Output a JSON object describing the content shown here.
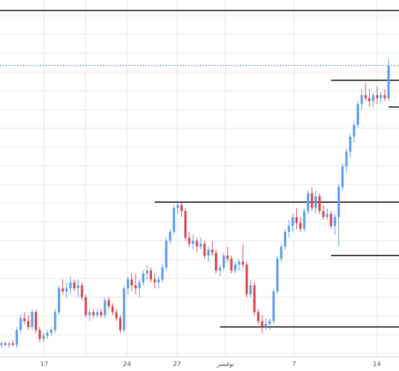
{
  "chart_data": {
    "type": "candlestick",
    "title": "",
    "xlabel": "",
    "ylabel": "",
    "grid": true,
    "x_ticks": [
      "17",
      "24",
      "27",
      "نوفمبر",
      "7",
      "14"
    ],
    "ylim": [
      0,
      100
    ],
    "colors": {
      "up": "#5b9cf0",
      "down": "#d9454f",
      "level": "#000000",
      "price_line": "#2f5fb5",
      "grid": "#e6e6ee"
    },
    "candles": [
      {
        "o": 2,
        "h": 3,
        "l": 1,
        "c": 2.5
      },
      {
        "o": 2.5,
        "h": 3,
        "l": 1.5,
        "c": 2
      },
      {
        "o": 2,
        "h": 3,
        "l": 1,
        "c": 2.5
      },
      {
        "o": 2.5,
        "h": 3.5,
        "l": 1.5,
        "c": 2
      },
      {
        "o": 2,
        "h": 8,
        "l": 1,
        "c": 7
      },
      {
        "o": 7,
        "h": 12,
        "l": 6,
        "c": 11
      },
      {
        "o": 11,
        "h": 13,
        "l": 9,
        "c": 10
      },
      {
        "o": 10,
        "h": 12,
        "l": 7,
        "c": 8
      },
      {
        "o": 8,
        "h": 14,
        "l": 7,
        "c": 13
      },
      {
        "o": 13,
        "h": 14,
        "l": 6,
        "c": 7
      },
      {
        "o": 7,
        "h": 8,
        "l": 3,
        "c": 4
      },
      {
        "o": 4,
        "h": 6,
        "l": 3,
        "c": 5
      },
      {
        "o": 5,
        "h": 7,
        "l": 4,
        "c": 6
      },
      {
        "o": 6,
        "h": 8,
        "l": 5,
        "c": 7
      },
      {
        "o": 7,
        "h": 14,
        "l": 6,
        "c": 13
      },
      {
        "o": 13,
        "h": 22,
        "l": 12,
        "c": 21
      },
      {
        "o": 21,
        "h": 24,
        "l": 19,
        "c": 20
      },
      {
        "o": 20,
        "h": 23,
        "l": 18,
        "c": 21
      },
      {
        "o": 21,
        "h": 25,
        "l": 19,
        "c": 23
      },
      {
        "o": 23,
        "h": 24,
        "l": 20,
        "c": 21
      },
      {
        "o": 21,
        "h": 24,
        "l": 18,
        "c": 22
      },
      {
        "o": 22,
        "h": 23,
        "l": 17,
        "c": 18
      },
      {
        "o": 18,
        "h": 19,
        "l": 11,
        "c": 12
      },
      {
        "o": 12,
        "h": 14,
        "l": 10,
        "c": 13
      },
      {
        "o": 13,
        "h": 14,
        "l": 11,
        "c": 12
      },
      {
        "o": 12,
        "h": 14,
        "l": 11,
        "c": 13
      },
      {
        "o": 13,
        "h": 14,
        "l": 11,
        "c": 12
      },
      {
        "o": 12,
        "h": 18,
        "l": 11,
        "c": 17
      },
      {
        "o": 17,
        "h": 18,
        "l": 14,
        "c": 15
      },
      {
        "o": 15,
        "h": 16,
        "l": 12,
        "c": 13
      },
      {
        "o": 13,
        "h": 14,
        "l": 10,
        "c": 11
      },
      {
        "o": 11,
        "h": 12,
        "l": 6,
        "c": 7
      },
      {
        "o": 7,
        "h": 22,
        "l": 6,
        "c": 21
      },
      {
        "o": 21,
        "h": 25,
        "l": 19,
        "c": 24
      },
      {
        "o": 24,
        "h": 26,
        "l": 20,
        "c": 22
      },
      {
        "o": 22,
        "h": 26,
        "l": 19,
        "c": 21
      },
      {
        "o": 21,
        "h": 24,
        "l": 18,
        "c": 23
      },
      {
        "o": 23,
        "h": 27,
        "l": 22,
        "c": 26
      },
      {
        "o": 26,
        "h": 29,
        "l": 24,
        "c": 27
      },
      {
        "o": 27,
        "h": 28,
        "l": 23,
        "c": 24
      },
      {
        "o": 24,
        "h": 26,
        "l": 21,
        "c": 23
      },
      {
        "o": 23,
        "h": 25,
        "l": 21,
        "c": 24
      },
      {
        "o": 24,
        "h": 29,
        "l": 23,
        "c": 28
      },
      {
        "o": 28,
        "h": 38,
        "l": 27,
        "c": 37
      },
      {
        "o": 37,
        "h": 41,
        "l": 36,
        "c": 40
      },
      {
        "o": 40,
        "h": 49,
        "l": 39,
        "c": 48
      },
      {
        "o": 48,
        "h": 50,
        "l": 46,
        "c": 49
      },
      {
        "o": 49,
        "h": 50,
        "l": 45,
        "c": 47
      },
      {
        "o": 47,
        "h": 48,
        "l": 37,
        "c": 38
      },
      {
        "o": 38,
        "h": 40,
        "l": 35,
        "c": 36
      },
      {
        "o": 36,
        "h": 39,
        "l": 34,
        "c": 37
      },
      {
        "o": 37,
        "h": 38,
        "l": 33,
        "c": 35
      },
      {
        "o": 35,
        "h": 38,
        "l": 34,
        "c": 36
      },
      {
        "o": 36,
        "h": 37,
        "l": 31,
        "c": 32
      },
      {
        "o": 32,
        "h": 35,
        "l": 30,
        "c": 34
      },
      {
        "o": 34,
        "h": 37,
        "l": 32,
        "c": 33
      },
      {
        "o": 33,
        "h": 34,
        "l": 26,
        "c": 27
      },
      {
        "o": 27,
        "h": 29,
        "l": 25,
        "c": 28
      },
      {
        "o": 28,
        "h": 33,
        "l": 27,
        "c": 32
      },
      {
        "o": 32,
        "h": 35,
        "l": 30,
        "c": 31
      },
      {
        "o": 31,
        "h": 32,
        "l": 26,
        "c": 27
      },
      {
        "o": 27,
        "h": 30,
        "l": 26,
        "c": 29
      },
      {
        "o": 29,
        "h": 31,
        "l": 27,
        "c": 30
      },
      {
        "o": 30,
        "h": 36,
        "l": 28,
        "c": 29
      },
      {
        "o": 29,
        "h": 30,
        "l": 18,
        "c": 19
      },
      {
        "o": 19,
        "h": 24,
        "l": 18,
        "c": 22
      },
      {
        "o": 22,
        "h": 23,
        "l": 12,
        "c": 13
      },
      {
        "o": 13,
        "h": 14,
        "l": 9,
        "c": 10
      },
      {
        "o": 10,
        "h": 12,
        "l": 6,
        "c": 8
      },
      {
        "o": 8,
        "h": 11,
        "l": 7,
        "c": 9
      },
      {
        "o": 9,
        "h": 11,
        "l": 7,
        "c": 10
      },
      {
        "o": 10,
        "h": 21,
        "l": 9,
        "c": 20
      },
      {
        "o": 20,
        "h": 32,
        "l": 19,
        "c": 31
      },
      {
        "o": 31,
        "h": 36,
        "l": 30,
        "c": 35
      },
      {
        "o": 35,
        "h": 41,
        "l": 34,
        "c": 40
      },
      {
        "o": 40,
        "h": 44,
        "l": 38,
        "c": 42
      },
      {
        "o": 42,
        "h": 46,
        "l": 40,
        "c": 45
      },
      {
        "o": 45,
        "h": 48,
        "l": 41,
        "c": 43
      },
      {
        "o": 43,
        "h": 45,
        "l": 40,
        "c": 41
      },
      {
        "o": 41,
        "h": 48,
        "l": 40,
        "c": 47
      },
      {
        "o": 47,
        "h": 54,
        "l": 46,
        "c": 53
      },
      {
        "o": 53,
        "h": 55,
        "l": 47,
        "c": 48
      },
      {
        "o": 48,
        "h": 54,
        "l": 46,
        "c": 52
      },
      {
        "o": 52,
        "h": 53,
        "l": 46,
        "c": 47
      },
      {
        "o": 47,
        "h": 49,
        "l": 44,
        "c": 45
      },
      {
        "o": 45,
        "h": 48,
        "l": 44,
        "c": 46
      },
      {
        "o": 46,
        "h": 47,
        "l": 41,
        "c": 42
      },
      {
        "o": 42,
        "h": 46,
        "l": 39,
        "c": 45
      },
      {
        "o": 45,
        "h": 56,
        "l": 35,
        "c": 55
      },
      {
        "o": 55,
        "h": 63,
        "l": 54,
        "c": 62
      },
      {
        "o": 62,
        "h": 68,
        "l": 60,
        "c": 67
      },
      {
        "o": 67,
        "h": 73,
        "l": 65,
        "c": 72
      },
      {
        "o": 72,
        "h": 77,
        "l": 70,
        "c": 76
      },
      {
        "o": 76,
        "h": 84,
        "l": 75,
        "c": 83
      },
      {
        "o": 83,
        "h": 88,
        "l": 81,
        "c": 86
      },
      {
        "o": 86,
        "h": 90,
        "l": 84,
        "c": 85
      },
      {
        "o": 85,
        "h": 88,
        "l": 82,
        "c": 84
      },
      {
        "o": 84,
        "h": 87,
        "l": 82,
        "c": 86
      },
      {
        "o": 86,
        "h": 89,
        "l": 83,
        "c": 85
      },
      {
        "o": 85,
        "h": 87,
        "l": 83,
        "c": 86
      },
      {
        "o": 86,
        "h": 88,
        "l": 84,
        "c": 85
      },
      {
        "o": 85,
        "h": 98,
        "l": 84,
        "c": 96
      }
    ],
    "levels": [
      {
        "y": 114.5,
        "x_from": 0,
        "x_to": 103
      },
      {
        "y": 91,
        "x_from": 86,
        "x_to": 103
      },
      {
        "y": 82,
        "x_from": 101,
        "x_to": 103
      },
      {
        "y": 50,
        "x_from": 40,
        "x_to": 103
      },
      {
        "y": 50,
        "x_from": 80,
        "x_to": 103
      },
      {
        "y": 32,
        "x_from": 86,
        "x_to": 103
      },
      {
        "y": 8,
        "x_from": 57,
        "x_to": 103
      }
    ],
    "price_line": 96
  }
}
